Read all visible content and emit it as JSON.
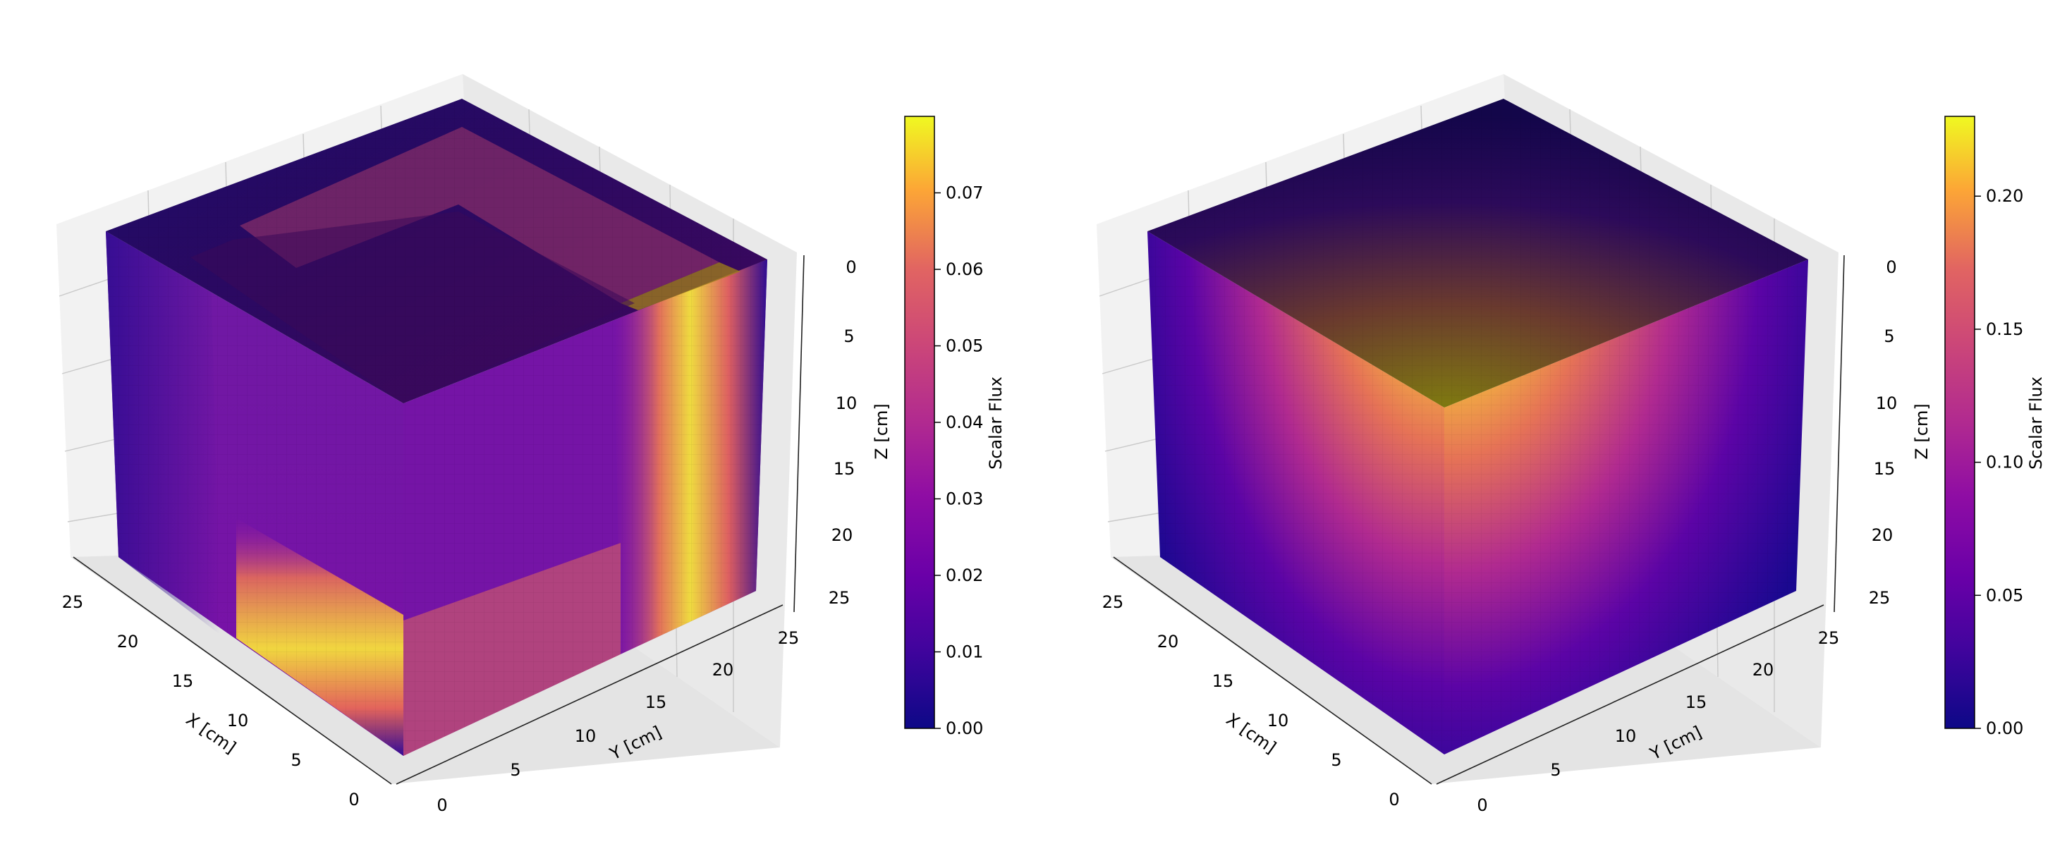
{
  "chart_data": [
    {
      "type": "heatmap",
      "subtype": "3d-voxel-cube",
      "colormap": "plasma",
      "xlabel": "X [cm]",
      "ylabel": "Y [cm]",
      "zlabel": "Z [cm]",
      "x_ticks": [
        0,
        5,
        10,
        15,
        20,
        25
      ],
      "y_ticks": [
        0,
        5,
        10,
        15,
        20,
        25
      ],
      "z_ticks": [
        0,
        5,
        10,
        15,
        20,
        25
      ],
      "xlim": [
        0,
        26
      ],
      "ylim": [
        0,
        26
      ],
      "zlim": [
        26,
        0
      ],
      "colorbar": {
        "label": "Scalar Flux",
        "min": 0.0,
        "max": 0.08,
        "ticks": [
          "0.00",
          "0.01",
          "0.02",
          "0.03",
          "0.04",
          "0.05",
          "0.06",
          "0.07"
        ],
        "tick_values": [
          0.0,
          0.01,
          0.02,
          0.03,
          0.04,
          0.05,
          0.06,
          0.07
        ]
      },
      "faces": {
        "top": "dark purple (~0.005–0.015) with a bright L-shaped band (~0.03–0.05) along the back edges and a dark inner block in the near corner (~0.01)",
        "left": "purple (~0.02) with a bright yellow horizontal band (~0.07) near the bottom, dark blue strip on outer edge (~0.005)",
        "right": "purple (~0.02) with a bright yellow vertical band (~0.07) near the outer edge, fading to blue (~0.005) at the edge"
      },
      "grid": true
    },
    {
      "type": "heatmap",
      "subtype": "3d-voxel-cube",
      "colormap": "plasma",
      "xlabel": "X [cm]",
      "ylabel": "Y [cm]",
      "zlabel": "Z [cm]",
      "x_ticks": [
        0,
        5,
        10,
        15,
        20,
        25
      ],
      "y_ticks": [
        0,
        5,
        10,
        15,
        20,
        25
      ],
      "z_ticks": [
        0,
        5,
        10,
        15,
        20,
        25
      ],
      "xlim": [
        0,
        26
      ],
      "ylim": [
        0,
        26
      ],
      "zlim": [
        26,
        0
      ],
      "colorbar": {
        "label": "Scalar Flux",
        "min": 0.0,
        "max": 0.23,
        "ticks": [
          "0.00",
          "0.05",
          "0.10",
          "0.15",
          "0.20"
        ],
        "tick_values": [
          0.0,
          0.05,
          0.1,
          0.15,
          0.2
        ]
      },
      "faces": {
        "top": "dark (~0.005) near back corner increasing toward the front corner (~0.15)",
        "left": "bright yellow near the top-front corner (~0.22) fading radially to dark blue (~0.0) at edges",
        "right": "bright yellow near the top-front corner (~0.22) fading radially to dark blue (~0.0) at edges"
      },
      "grid": true
    }
  ]
}
